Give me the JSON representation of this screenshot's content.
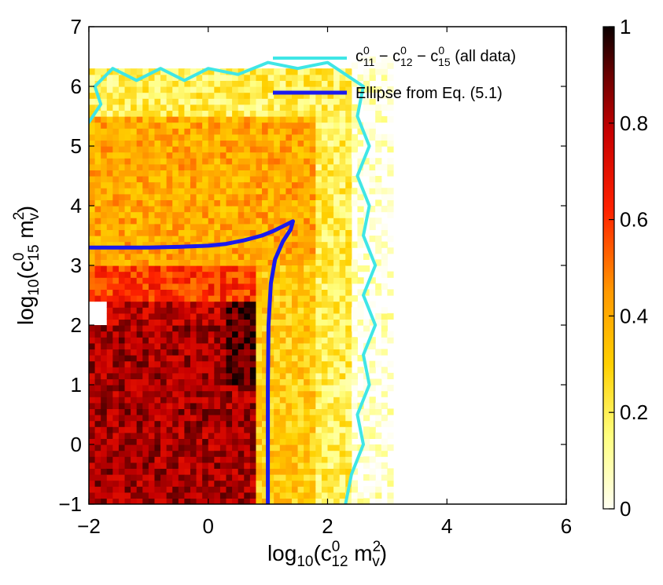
{
  "chart_data": {
    "type": "heatmap",
    "title": "",
    "xlabel": {
      "base": "log",
      "base_sub": "10",
      "open": "(c",
      "sup": "0",
      "sub": "12",
      "mid": " m",
      "sup2": "2",
      "sub2": "v",
      "close": ")"
    },
    "ylabel": {
      "base": "log",
      "base_sub": "10",
      "open": "(c",
      "sup": "0",
      "sub": "15",
      "mid": " m",
      "sup2": "2",
      "sub2": "v",
      "close": ")"
    },
    "xlim": [
      -2,
      6
    ],
    "ylim": [
      -1,
      7
    ],
    "xticks": [
      "−2",
      "0",
      "2",
      "4",
      "6"
    ],
    "xtick_values": [
      -2,
      0,
      2,
      4,
      6
    ],
    "yticks": [
      "−1",
      "0",
      "1",
      "2",
      "3",
      "4",
      "5",
      "6",
      "7"
    ],
    "ytick_values": [
      -1,
      0,
      1,
      2,
      3,
      4,
      5,
      6,
      7
    ],
    "colorbar": {
      "range": [
        0,
        1
      ],
      "ticks": [
        "0",
        "0.2",
        "0.4",
        "0.6",
        "0.8",
        "1"
      ],
      "tick_values": [
        0,
        0.2,
        0.4,
        0.6,
        0.8,
        1
      ],
      "colormap": "hot-reversed"
    },
    "heatmap_regions": [
      {
        "x_range": [
          -2,
          0.8
        ],
        "y_range": [
          -1,
          2.0
        ],
        "value": 0.82
      },
      {
        "x_range": [
          -1.7,
          0.7
        ],
        "y_range": [
          2.0,
          2.4
        ],
        "value": 0.78
      },
      {
        "x_range": [
          0.3,
          0.8
        ],
        "y_range": [
          1.0,
          2.4
        ],
        "value": 0.92
      },
      {
        "x_range": [
          -2,
          0.8
        ],
        "y_range": [
          2.4,
          3.0
        ],
        "value": 0.6
      },
      {
        "x_range": [
          -2,
          1.8
        ],
        "y_range": [
          3.0,
          5.5
        ],
        "value": 0.4
      },
      {
        "x_range": [
          0.8,
          1.8
        ],
        "y_range": [
          -1,
          3.0
        ],
        "value": 0.32
      },
      {
        "x_range": [
          1.8,
          2.4
        ],
        "y_range": [
          -1,
          5.5
        ],
        "value": 0.2
      },
      {
        "x_range": [
          -2,
          2.4
        ],
        "y_range": [
          5.5,
          6.3
        ],
        "value": 0.2
      },
      {
        "x_range": [
          2.4,
          3.1
        ],
        "y_range": [
          -1,
          6.5
        ],
        "value": 0.06
      }
    ],
    "series": [
      {
        "name": "c_{11}^0 − c_{12}^0 − c_{15}^0 (all data)",
        "legend": {
          "p1": "c",
          "p1_sup": "0",
          "p1_sub": "11",
          "p2": " − c",
          "p2_sup": "0",
          "p2_sub": "12",
          "p3": " − c",
          "p3_sup": "0",
          "p3_sub": "15",
          "p4": " (all data)"
        },
        "color": "#3fe6e6",
        "type": "contour",
        "points": [
          [
            -2.0,
            5.4
          ],
          [
            -1.8,
            5.7
          ],
          [
            -1.9,
            6.0
          ],
          [
            -1.6,
            6.3
          ],
          [
            -1.2,
            6.1
          ],
          [
            -0.8,
            6.3
          ],
          [
            -0.4,
            6.1
          ],
          [
            0.0,
            6.3
          ],
          [
            0.5,
            6.2
          ],
          [
            1.0,
            6.4
          ],
          [
            1.5,
            6.3
          ],
          [
            2.0,
            6.4
          ],
          [
            2.3,
            6.2
          ],
          [
            2.6,
            6.0
          ],
          [
            2.5,
            5.5
          ],
          [
            2.7,
            5.0
          ],
          [
            2.5,
            4.5
          ],
          [
            2.7,
            4.0
          ],
          [
            2.6,
            3.5
          ],
          [
            2.8,
            3.0
          ],
          [
            2.6,
            2.5
          ],
          [
            2.8,
            2.0
          ],
          [
            2.6,
            1.5
          ],
          [
            2.7,
            1.0
          ],
          [
            2.5,
            0.5
          ],
          [
            2.6,
            0.0
          ],
          [
            2.4,
            -0.5
          ],
          [
            2.3,
            -1.0
          ]
        ]
      },
      {
        "name": "Ellipse from Eq. (5.1)",
        "legend": {
          "p1": "Ellipse from Eq. (5.1)"
        },
        "color": "#1a1aee",
        "type": "line",
        "points": [
          [
            -2.0,
            3.3
          ],
          [
            -1.5,
            3.3
          ],
          [
            -1.0,
            3.3
          ],
          [
            -0.5,
            3.31
          ],
          [
            0.0,
            3.33
          ],
          [
            0.3,
            3.36
          ],
          [
            0.6,
            3.42
          ],
          [
            0.9,
            3.5
          ],
          [
            1.1,
            3.58
          ],
          [
            1.3,
            3.68
          ],
          [
            1.42,
            3.74
          ],
          [
            1.38,
            3.6
          ],
          [
            1.25,
            3.4
          ],
          [
            1.12,
            3.1
          ],
          [
            1.05,
            2.7
          ],
          [
            1.01,
            2.0
          ],
          [
            1.0,
            1.0
          ],
          [
            1.0,
            0.0
          ],
          [
            1.0,
            -1.0
          ]
        ]
      }
    ],
    "legend_position": "top-right"
  }
}
